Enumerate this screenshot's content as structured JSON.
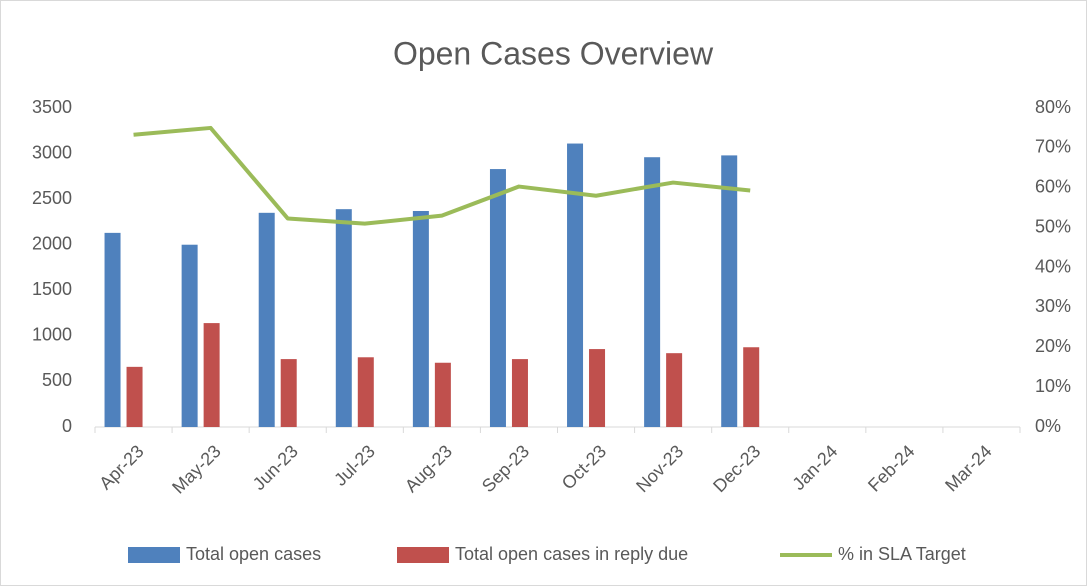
{
  "chart_data": {
    "type": "combo",
    "title": "Open Cases Overview",
    "categories": [
      "Apr-23",
      "May-23",
      "Jun-23",
      "Jul-23",
      "Aug-23",
      "Sep-23",
      "Oct-23",
      "Nov-23",
      "Dec-23",
      "Jan-24",
      "Feb-24",
      "Mar-24"
    ],
    "series": [
      {
        "name": "Total open cases",
        "type": "bar",
        "color": "#4f81bd",
        "values": [
          2130,
          2000,
          2350,
          2390,
          2370,
          2830,
          3110,
          2960,
          2980,
          null,
          null,
          null
        ]
      },
      {
        "name": "Total open cases in reply due",
        "type": "bar",
        "color": "#c0504d",
        "values": [
          660,
          1140,
          745,
          765,
          705,
          745,
          855,
          810,
          875,
          null,
          null,
          null
        ]
      },
      {
        "name": "% in SLA Target",
        "type": "line",
        "axis": "y2",
        "color": "#9bbb59",
        "values": [
          73.3,
          75,
          52.3,
          51,
          53,
          60.3,
          58,
          61.3,
          59.3,
          null,
          null,
          null
        ]
      }
    ],
    "ylim": [
      0,
      3500
    ],
    "yticks": [
      0,
      500,
      1000,
      1500,
      2000,
      2500,
      3000,
      3500
    ],
    "y2lim": [
      0,
      80
    ],
    "y2ticks": [
      {
        "value": 0,
        "label": "0%"
      },
      {
        "value": 10,
        "label": "10%"
      },
      {
        "value": 20,
        "label": "20%"
      },
      {
        "value": 30,
        "label": "30%"
      },
      {
        "value": 40,
        "label": "40%"
      },
      {
        "value": 50,
        "label": "50%"
      },
      {
        "value": 60,
        "label": "60%"
      },
      {
        "value": 70,
        "label": "70%"
      },
      {
        "value": 80,
        "label": "80%"
      }
    ],
    "legend": "bottom"
  }
}
